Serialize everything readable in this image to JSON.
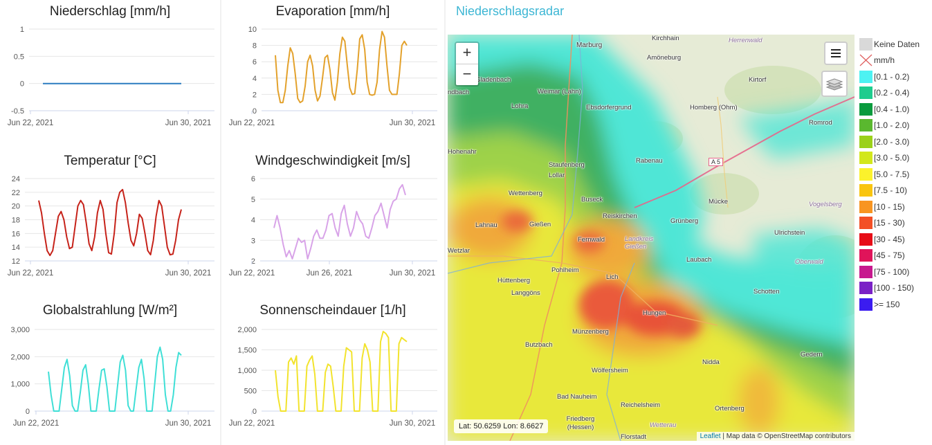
{
  "charts": [
    {
      "id": "c0",
      "title": "Niederschlag [mm/h]",
      "type": "line",
      "color": "#2a7bc0",
      "yticks": [
        "1",
        "0.5",
        "0",
        "-0.5"
      ],
      "xticks": [
        "Jun 22, 2021",
        "Jun 30, 2021"
      ],
      "chart_data": {
        "type": "line",
        "x_start": "Jun 22, 2021",
        "x_end": "Jun 30, 2021",
        "ylim": [
          -0.5,
          1
        ],
        "series": [
          {
            "values": [
              0,
              0,
              0,
              0,
              0,
              0,
              0,
              0,
              0,
              0,
              0,
              0,
              0,
              0,
              0,
              0,
              0,
              0,
              0,
              0,
              0,
              0,
              0,
              0,
              0,
              0,
              0,
              0,
              0,
              0,
              0,
              0,
              0,
              0
            ]
          }
        ]
      }
    },
    {
      "id": "c1",
      "title": "Evaporation [mm/h]",
      "type": "line",
      "color": "#e3a12b",
      "yticks": [
        "10",
        "8",
        "6",
        "4",
        "2",
        "0"
      ],
      "xticks": [
        "Jun 22, 2021",
        "Jun 30, 2021"
      ],
      "chart_data": {
        "type": "line",
        "x_start": "Jun 22, 2021",
        "x_end": "Jun 30, 2021",
        "ylim": [
          0,
          10
        ],
        "series": [
          {
            "values": [
              6.8,
              2.5,
              1,
              1,
              2.5,
              5.5,
              7.7,
              7,
              4.5,
              1.5,
              1,
              1.2,
              3,
              6,
              6.8,
              5.5,
              2.5,
              1.2,
              1.8,
              4,
              6.5,
              6.8,
              5,
              2.2,
              1.3,
              3.5,
              7,
              9,
              8.5,
              5.5,
              2.8,
              2,
              2.1,
              5,
              8.8,
              9.3,
              7.5,
              3.5,
              2,
              1.9,
              2,
              3.5,
              7.5,
              9.7,
              9,
              5.5,
              2.5,
              2,
              2,
              2,
              4.5,
              8,
              8.5,
              8
            ]
          }
        ]
      }
    },
    {
      "id": "c2",
      "title": "Temperatur [°C]",
      "type": "line",
      "color": "#c62219",
      "yticks": [
        "24",
        "22",
        "20",
        "18",
        "16",
        "14",
        "12"
      ],
      "xticks": [
        "Jun 22, 2021",
        "Jun 30, 2021"
      ],
      "chart_data": {
        "type": "line",
        "x_start": "Jun 22, 2021",
        "x_end": "Jun 30, 2021",
        "ylim": [
          12,
          24
        ],
        "series": [
          {
            "values": [
              20.8,
              19,
              16,
              13.5,
              12.8,
              13.5,
              16,
              18.5,
              19.2,
              18,
              15.5,
              13.8,
              14,
              17,
              20,
              20.8,
              20.2,
              17.5,
              14.5,
              13.5,
              15.5,
              19,
              20.8,
              19.5,
              16,
              13.2,
              13,
              16,
              20.5,
              22,
              22.4,
              20.5,
              17.5,
              15,
              14.2,
              16,
              18.8,
              18.2,
              16,
              13.5,
              12.9,
              15,
              18.5,
              20.8,
              20,
              17,
              14,
              12.9,
              13,
              15,
              18,
              19.5
            ]
          }
        ]
      }
    },
    {
      "id": "c3",
      "title": "Windgeschwindigkeit [m/s]",
      "type": "line",
      "color": "#d8a3e8",
      "yticks": [
        "6",
        "5",
        "4",
        "3",
        "2"
      ],
      "xticks": [
        "Jun 22, 2021",
        "Jun 26, 2021",
        "Jun 30, 2021"
      ],
      "chart_data": {
        "type": "line",
        "x_start": "Jun 22, 2021",
        "x_end": "Jun 30, 2021",
        "ylim": [
          2,
          6
        ],
        "series": [
          {
            "values": [
              3.6,
              4.2,
              3.6,
              2.8,
              2.2,
              2.5,
              2.1,
              2.6,
              3.1,
              2.9,
              3,
              2.1,
              2.6,
              3.2,
              3.5,
              3.1,
              3.1,
              3.5,
              4.2,
              4.3,
              3.6,
              3.2,
              4.3,
              4.7,
              3.8,
              3.2,
              3.6,
              4.4,
              4,
              3.8,
              3.2,
              3.1,
              3.6,
              4.2,
              4.4,
              4.8,
              4.2,
              3.6,
              4.5,
              4.9,
              5,
              5.5,
              5.7,
              5.2
            ]
          }
        ]
      }
    },
    {
      "id": "c4",
      "title": "Globalstrahlung [W/m²]",
      "type": "line",
      "color": "#3fdfd6",
      "yticks": [
        "3,000",
        "2,000",
        "1,000",
        "0"
      ],
      "xticks": [
        "Jun 22, 2021",
        "Jun 30, 2021"
      ],
      "chart_data": {
        "type": "line",
        "x_start": "Jun 22, 2021",
        "x_end": "Jun 30, 2021",
        "ylim": [
          0,
          3000
        ],
        "series": [
          {
            "values": [
              1450,
              600,
              0,
              0,
              0,
              800,
              1600,
              1900,
              1300,
              200,
              0,
              0,
              700,
              1500,
              1700,
              1000,
              0,
              0,
              0,
              800,
              1500,
              1550,
              900,
              0,
              0,
              0,
              900,
              1800,
              2050,
              1500,
              200,
              0,
              0,
              800,
              1600,
              1900,
              1200,
              0,
              0,
              0,
              1000,
              2000,
              2350,
              1900,
              600,
              0,
              0,
              600,
              1600,
              2150,
              2050
            ]
          }
        ]
      }
    },
    {
      "id": "c5",
      "title": "Sonnenscheindauer [1/h]",
      "type": "line",
      "color": "#f2e32d",
      "yticks": [
        "2,000",
        "1,500",
        "1,000",
        "500",
        "0"
      ],
      "xticks": [
        "Jun 22, 2021",
        "Jun 30, 2021"
      ],
      "chart_data": {
        "type": "line",
        "x_start": "Jun 22, 2021",
        "x_end": "Jun 30, 2021",
        "ylim": [
          0,
          2000
        ],
        "series": [
          {
            "values": [
              1000,
              350,
              0,
              0,
              0,
              1200,
              1300,
              1150,
              1350,
              0,
              0,
              0,
              1100,
              1250,
              1350,
              900,
              0,
              0,
              0,
              950,
              1150,
              1100,
              600,
              0,
              0,
              0,
              1100,
              1550,
              1500,
              1450,
              0,
              0,
              0,
              1300,
              1650,
              1500,
              1200,
              0,
              0,
              0,
              1700,
              1950,
              1900,
              1800,
              0,
              0,
              0,
              1650,
              1800,
              1750,
              1700
            ]
          }
        ]
      }
    }
  ],
  "radar": {
    "title": "Niederschlagsradar",
    "zoom_in": "+",
    "zoom_out": "−",
    "coords": "Lat: 50.6259  Lon: 8.6627",
    "attribution_link": "Leaflet",
    "attribution_text": " | Map data © OpenStreetMap contributors",
    "road_label": "A 5",
    "places": [
      "Kirchhain",
      "Marburg",
      "Amöneburg",
      "Gladenbach",
      "Weimar (Lahn)",
      "Kirtorf",
      "Lohra",
      "Ebsdorfergrund",
      "Homberg (Ohm)",
      "Romrod",
      "Hohenahr",
      "Staufenberg",
      "Lollar",
      "Rabenau",
      "Wettenberg",
      "Buseck",
      "Mücke",
      "Reiskirchen",
      "Grünberg",
      "Lahnau",
      "Gießen",
      "Fernwald",
      "Ulrichstein",
      "Wetzlar",
      "Pohlheim",
      "Laubach",
      "Hüttenberg",
      "Lich",
      "Langgöns",
      "Schotten",
      "Hungen",
      "Butzbach",
      "Münzenberg",
      "Nidda",
      "Gedern",
      "Wölfersheim",
      "Bad Nauheim",
      "Reichelsheim",
      "Ortenberg",
      "Friedberg (Hessen)",
      "Florstadt",
      "Vogelsberg",
      "Oberwald",
      "Landkreis Gießen",
      "Wetterau",
      "Herrenwald",
      "ndbach"
    ]
  },
  "legend": [
    {
      "label": "Keine Daten",
      "color": "#d9d9d9"
    },
    {
      "label": "mm/h",
      "color": "none"
    },
    {
      "label": "[0.1 - 0.2)",
      "color": "#4df2f2"
    },
    {
      "label": "[0.2 - 0.4)",
      "color": "#1fcc8e"
    },
    {
      "label": "[0.4 - 1.0)",
      "color": "#0a9b3e"
    },
    {
      "label": "[1.0 - 2.0)",
      "color": "#5ab82f"
    },
    {
      "label": "[2.0 - 3.0)",
      "color": "#9bd11a"
    },
    {
      "label": "[3.0 - 5.0)",
      "color": "#d2e71c"
    },
    {
      "label": "[5.0 - 7.5)",
      "color": "#fbf22c"
    },
    {
      "label": "[7.5 - 10)",
      "color": "#f9c50f"
    },
    {
      "label": "[10 - 15)",
      "color": "#f89521"
    },
    {
      "label": "[15 - 30)",
      "color": "#f34f25"
    },
    {
      "label": "[30 - 45)",
      "color": "#e70d17"
    },
    {
      "label": "[45 - 75)",
      "color": "#e0145a"
    },
    {
      "label": "[75 - 100)",
      "color": "#c7198e"
    },
    {
      "label": "[100 - 150)",
      "color": "#7a21c6"
    },
    {
      "label": ">= 150",
      "color": "#3b1cf0"
    }
  ]
}
